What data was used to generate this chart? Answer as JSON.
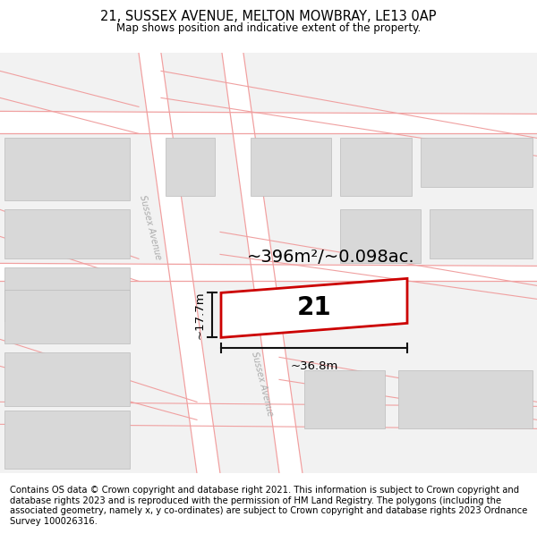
{
  "title": "21, SUSSEX AVENUE, MELTON MOWBRAY, LE13 0AP",
  "subtitle": "Map shows position and indicative extent of the property.",
  "footer": "Contains OS data © Crown copyright and database right 2021. This information is subject to Crown copyright and database rights 2023 and is reproduced with the permission of HM Land Registry. The polygons (including the associated geometry, namely x, y co-ordinates) are subject to Crown copyright and database rights 2023 Ordnance Survey 100026316.",
  "area_label": "~396m²/~0.098ac.",
  "width_label": "~36.8m",
  "height_label": "~17.7m",
  "plot_number": "21",
  "map_bg": "#f2f2f2",
  "block_color": "#d8d8d8",
  "road_color": "#ffffff",
  "pink_line_color": "#f0a0a0",
  "red_plot_color": "#cc0000",
  "dim_line_color": "#111111",
  "title_fontsize": 10.5,
  "subtitle_fontsize": 8.5,
  "footer_fontsize": 7.2,
  "label_fontsize": 14,
  "number_fontsize": 20,
  "sussex_label_fontsize": 7
}
